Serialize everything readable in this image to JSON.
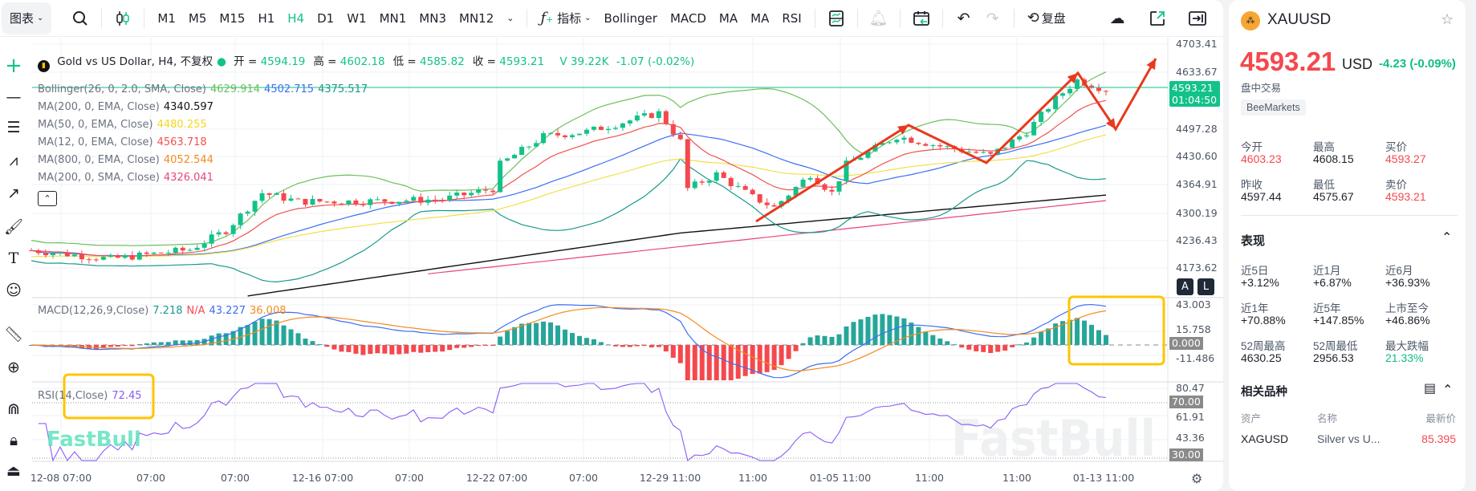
{
  "toolbar": {
    "chart_menu": "图表",
    "timeframes": [
      "M1",
      "M5",
      "M15",
      "H1",
      "H4",
      "D1",
      "W1",
      "MN1",
      "MN3",
      "MN12"
    ],
    "active_timeframe": "H4",
    "indicators_label": "指标",
    "indicator_shortcuts": [
      "Bollinger",
      "MACD",
      "MA",
      "MA",
      "RSI"
    ],
    "replay_label": "复盘"
  },
  "legend": {
    "title": "Gold vs US Dollar, H4, 不复权",
    "ohlc": [
      {
        "k": "开",
        "v": "4594.19"
      },
      {
        "k": "高",
        "v": "4602.18"
      },
      {
        "k": "低",
        "v": "4585.82"
      },
      {
        "k": "收",
        "v": "4593.21"
      }
    ],
    "volume": "V 39.22K",
    "change": "-1.07 (-0.02%)",
    "indicators": [
      {
        "name": "Bollinger(26, 0, 2.0, SMA, Close)",
        "values": [
          {
            "v": "4629.914",
            "c": "#6dbf5a"
          },
          {
            "v": "4502.715",
            "c": "#3b6ef5"
          },
          {
            "v": "4375.517",
            "c": "#1a9a8a"
          }
        ]
      },
      {
        "name": "MA(200, 0, EMA, Close)",
        "values": [
          {
            "v": "4340.597",
            "c": "#111111"
          }
        ]
      },
      {
        "name": "MA(50, 0, EMA, Close)",
        "values": [
          {
            "v": "4480.255",
            "c": "#f2d81c"
          }
        ]
      },
      {
        "name": "MA(12, 0, EMA, Close)",
        "values": [
          {
            "v": "4563.718",
            "c": "#f0524f"
          }
        ]
      },
      {
        "name": "MA(800, 0, EMA, Close)",
        "values": [
          {
            "v": "4052.544",
            "c": "#f58a1f"
          }
        ]
      },
      {
        "name": "MA(200, 0, SMA, Close)",
        "values": [
          {
            "v": "4326.041",
            "c": "#e8457a"
          }
        ]
      }
    ],
    "macd": {
      "name": "MACD(12,26,9,Close)",
      "values": [
        {
          "v": "7.218",
          "c": "#1a9a8a"
        },
        {
          "v": "N/A",
          "c": "#f5484d"
        },
        {
          "v": "43.227",
          "c": "#3b6ef5"
        },
        {
          "v": "36.008",
          "c": "#f58a1f"
        }
      ]
    },
    "rsi": {
      "name": "RSI(14,Close)",
      "value": "72.45"
    }
  },
  "price_axis": [
    "4703.41",
    "4633.67",
    "4497.28",
    "4430.60",
    "4364.91",
    "4300.19",
    "4236.43",
    "4173.62"
  ],
  "current_price": {
    "price": "4593.21",
    "countdown": "01:04:50"
  },
  "macd_axis": {
    "labels": [
      "43.003",
      "15.758",
      "-11.486"
    ],
    "zero": "0.000"
  },
  "rsi_axis": {
    "labels": [
      "80.47",
      "61.91",
      "43.36"
    ],
    "upper": "70.00",
    "lower": "30.00"
  },
  "time_axis": [
    "12-08 07:00",
    "07:00",
    "07:00",
    "12-16 07:00",
    "07:00",
    "12-22 07:00",
    "07:00",
    "12-29 11:00",
    "11:00",
    "01-05 11:00",
    "11:00",
    "11:00",
    "01-13 11:00"
  ],
  "scale_buttons": [
    "A",
    "L"
  ],
  "watermark": "FastBull",
  "chart_data": {
    "type": "candlestick",
    "price_path": [
      [
        0,
        4215
      ],
      [
        11,
        4195
      ],
      [
        22,
        4217
      ],
      [
        27,
        4262
      ],
      [
        32,
        4350
      ],
      [
        37,
        4330
      ],
      [
        45,
        4330
      ],
      [
        57,
        4335
      ],
      [
        64,
        4360
      ],
      [
        65,
        4417
      ],
      [
        71,
        4483
      ],
      [
        77,
        4494
      ],
      [
        82,
        4516
      ],
      [
        87,
        4538
      ],
      [
        90,
        4471
      ],
      [
        91,
        4360
      ],
      [
        95,
        4394
      ],
      [
        100,
        4340
      ],
      [
        103,
        4316
      ],
      [
        108,
        4394
      ],
      [
        111,
        4350
      ],
      [
        113,
        4417
      ],
      [
        120,
        4483
      ],
      [
        126,
        4460
      ],
      [
        133,
        4438
      ],
      [
        138,
        4494
      ],
      [
        142,
        4571
      ],
      [
        145,
        4615
      ],
      [
        149,
        4593
      ]
    ],
    "ema200_path": [
      [
        30,
        4108
      ],
      [
        90,
        4256
      ],
      [
        149,
        4345
      ]
    ],
    "sma200_path": [
      [
        55,
        4160
      ],
      [
        90,
        4224
      ],
      [
        149,
        4332
      ]
    ],
    "price_range": [
      4155,
      4720
    ]
  },
  "colors": {
    "up": "#12c28a",
    "down": "#f5484d",
    "accent": "#12c28a",
    "annotation": "#e8391e",
    "highlight": "#ffc400"
  },
  "panel": {
    "symbol": "XAUUSD",
    "price": "4593.21",
    "currency": "USD",
    "change": "-4.23",
    "change_pct": "(-0.09%)",
    "session": "盘中交易",
    "broker": "BeeMarkets",
    "stats": [
      {
        "label": "今开",
        "value": "4603.23",
        "color": "red"
      },
      {
        "label": "最高",
        "value": "4608.15",
        "color": ""
      },
      {
        "label": "买价",
        "value": "4593.27",
        "color": "red"
      },
      {
        "label": "昨收",
        "value": "4597.44",
        "color": ""
      },
      {
        "label": "最低",
        "value": "4575.67",
        "color": ""
      },
      {
        "label": "卖价",
        "value": "4593.21",
        "color": "red"
      }
    ],
    "performance_title": "表现",
    "performance": [
      {
        "label": "近5日",
        "value": "+3.12%",
        "color": ""
      },
      {
        "label": "近1月",
        "value": "+6.87%",
        "color": ""
      },
      {
        "label": "近6月",
        "value": "+36.93%",
        "color": ""
      },
      {
        "label": "近1年",
        "value": "+70.88%",
        "color": ""
      },
      {
        "label": "近5年",
        "value": "+147.85%",
        "color": ""
      },
      {
        "label": "上市至今",
        "value": "+46.86%",
        "color": ""
      },
      {
        "label": "52周最高",
        "value": "4630.25",
        "color": ""
      },
      {
        "label": "52周最低",
        "value": "2956.53",
        "color": ""
      },
      {
        "label": "最大跌幅",
        "value": "21.33%",
        "color": "green"
      }
    ],
    "related_title": "相关品种",
    "related_headers": [
      "资产",
      "名称",
      "最新价"
    ],
    "related": [
      {
        "asset": "XAGUSD",
        "name": "Silver vs U...",
        "price": "85.395"
      }
    ]
  }
}
